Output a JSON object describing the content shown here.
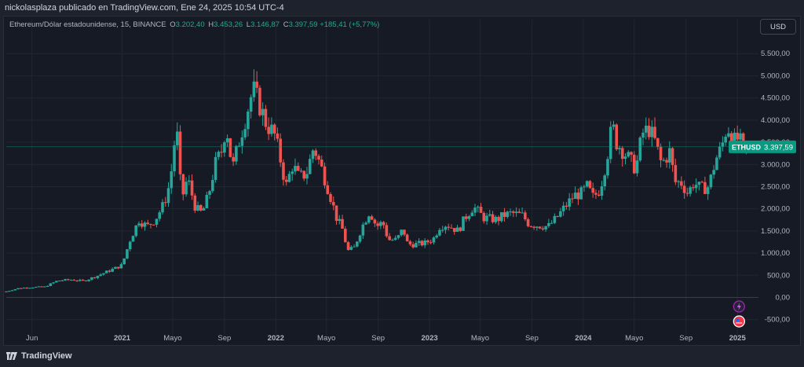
{
  "header": {
    "publisher_line": "nickolasplaza publicado en TradingView.com, Ene 24, 2025 10:54 UTC-4"
  },
  "legend": {
    "symbol": "Ethereum/Dólar estadounidense, 15, BINANCE",
    "open_label": "O",
    "open": "3.202,40",
    "high_label": "H",
    "high": "3.453,26",
    "low_label": "L",
    "low": "3.146,87",
    "close_label": "C",
    "close": "3.397,59",
    "change": "+185,41 (+5,77%)"
  },
  "currency_button": "USD",
  "price_tag": {
    "symbol": "ETHUSD",
    "value": "3.397,59"
  },
  "footer": {
    "brand": "TradingView"
  },
  "icons": {
    "event_bolt": "lightning-icon",
    "event_flag": "us-flag-icon"
  },
  "colors": {
    "up": "#26a69a",
    "down": "#ef5350",
    "accent": "#089981",
    "background": "#161a25"
  },
  "chart_data": {
    "type": "candlestick",
    "y_axis": {
      "ticks": [
        -500,
        0,
        500,
        1000,
        1500,
        2000,
        2500,
        3000,
        3500,
        4000,
        4500,
        5000,
        5500
      ],
      "tick_labels": [
        "-500,00",
        "0,00",
        "500,00",
        "1.000,00",
        "1.500,00",
        "2.000,00",
        "2.500,00",
        "3.000,00",
        "3.500,00",
        "4.000,00",
        "4.500,00",
        "5.000,00",
        "5.500,00"
      ],
      "range": [
        -700,
        6000
      ]
    },
    "x_axis": {
      "range": [
        "2020-04-01",
        "2025-02-20"
      ],
      "ticks": [
        {
          "date": "2020-06-01",
          "label": "Jun",
          "bold": false
        },
        {
          "date": "2021-01-01",
          "label": "2021",
          "bold": true
        },
        {
          "date": "2021-05-01",
          "label": "Mayo",
          "bold": false
        },
        {
          "date": "2021-09-01",
          "label": "Sep",
          "bold": false
        },
        {
          "date": "2022-01-01",
          "label": "2022",
          "bold": true
        },
        {
          "date": "2022-05-01",
          "label": "Mayo",
          "bold": false
        },
        {
          "date": "2022-09-01",
          "label": "Sep",
          "bold": false
        },
        {
          "date": "2023-01-01",
          "label": "2023",
          "bold": true
        },
        {
          "date": "2023-05-01",
          "label": "Mayo",
          "bold": false
        },
        {
          "date": "2023-09-01",
          "label": "Sep",
          "bold": false
        },
        {
          "date": "2024-01-01",
          "label": "2024",
          "bold": true
        },
        {
          "date": "2024-05-01",
          "label": "Mayo",
          "bold": false
        },
        {
          "date": "2024-09-01",
          "label": "Sep",
          "bold": false
        },
        {
          "date": "2025-01-01",
          "label": "2025",
          "bold": true
        }
      ]
    },
    "current_price": 3397.59,
    "weekly_close_path": [
      [
        "2020-04-01",
        135
      ],
      [
        "2020-05-01",
        210
      ],
      [
        "2020-06-01",
        230
      ],
      [
        "2020-07-01",
        240
      ],
      [
        "2020-08-01",
        380
      ],
      [
        "2020-09-01",
        400
      ],
      [
        "2020-10-01",
        370
      ],
      [
        "2020-11-01",
        480
      ],
      [
        "2020-12-01",
        600
      ],
      [
        "2021-01-01",
        730
      ],
      [
        "2021-01-20",
        1300
      ],
      [
        "2021-02-10",
        1750
      ],
      [
        "2021-03-01",
        1600
      ],
      [
        "2021-03-20",
        1750
      ],
      [
        "2021-04-10",
        2100
      ],
      [
        "2021-04-25",
        2600
      ],
      [
        "2021-05-10",
        3900
      ],
      [
        "2021-05-22",
        2200
      ],
      [
        "2021-06-05",
        2700
      ],
      [
        "2021-06-25",
        2000
      ],
      [
        "2021-07-10",
        1900
      ],
      [
        "2021-07-25",
        2300
      ],
      [
        "2021-08-10",
        3000
      ],
      [
        "2021-08-25",
        3300
      ],
      [
        "2021-09-05",
        3900
      ],
      [
        "2021-09-20",
        2900
      ],
      [
        "2021-10-05",
        3500
      ],
      [
        "2021-10-25",
        4200
      ],
      [
        "2021-11-08",
        4700
      ],
      [
        "2021-11-25",
        4300
      ],
      [
        "2021-12-10",
        3900
      ],
      [
        "2021-12-28",
        3700
      ],
      [
        "2022-01-10",
        3200
      ],
      [
        "2022-01-25",
        2500
      ],
      [
        "2022-02-10",
        3000
      ],
      [
        "2022-02-25",
        2700
      ],
      [
        "2022-03-15",
        2800
      ],
      [
        "2022-04-01",
        3400
      ],
      [
        "2022-04-20",
        2900
      ],
      [
        "2022-05-10",
        2300
      ],
      [
        "2022-05-25",
        1800
      ],
      [
        "2022-06-10",
        1500
      ],
      [
        "2022-06-20",
        1050
      ],
      [
        "2022-07-05",
        1100
      ],
      [
        "2022-07-25",
        1600
      ],
      [
        "2022-08-12",
        1950
      ],
      [
        "2022-08-28",
        1600
      ],
      [
        "2022-09-12",
        1700
      ],
      [
        "2022-09-25",
        1300
      ],
      [
        "2022-10-15",
        1300
      ],
      [
        "2022-10-30",
        1550
      ],
      [
        "2022-11-10",
        1200
      ],
      [
        "2022-11-28",
        1200
      ],
      [
        "2022-12-20",
        1220
      ],
      [
        "2023-01-10",
        1320
      ],
      [
        "2023-01-25",
        1600
      ],
      [
        "2023-02-10",
        1650
      ],
      [
        "2023-03-10",
        1500
      ],
      [
        "2023-03-25",
        1780
      ],
      [
        "2023-04-15",
        2050
      ],
      [
        "2023-05-10",
        1800
      ],
      [
        "2023-06-10",
        1750
      ],
      [
        "2023-06-25",
        1850
      ],
      [
        "2023-07-15",
        1900
      ],
      [
        "2023-08-10",
        1850
      ],
      [
        "2023-08-25",
        1650
      ],
      [
        "2023-09-20",
        1620
      ],
      [
        "2023-10-10",
        1600
      ],
      [
        "2023-10-30",
        1800
      ],
      [
        "2023-11-15",
        2000
      ],
      [
        "2023-12-10",
        2300
      ],
      [
        "2023-12-28",
        2350
      ],
      [
        "2024-01-10",
        2500
      ],
      [
        "2024-01-25",
        2250
      ],
      [
        "2024-02-10",
        2450
      ],
      [
        "2024-02-25",
        3100
      ],
      [
        "2024-03-10",
        3900
      ],
      [
        "2024-03-20",
        3500
      ],
      [
        "2024-04-05",
        3300
      ],
      [
        "2024-04-20",
        3100
      ],
      [
        "2024-05-05",
        2900
      ],
      [
        "2024-05-20",
        3700
      ],
      [
        "2024-06-05",
        3800
      ],
      [
        "2024-06-20",
        3500
      ],
      [
        "2024-07-05",
        3000
      ],
      [
        "2024-07-25",
        3300
      ],
      [
        "2024-08-05",
        2600
      ],
      [
        "2024-08-20",
        2600
      ],
      [
        "2024-09-05",
        2350
      ],
      [
        "2024-09-20",
        2600
      ],
      [
        "2024-10-05",
        2450
      ],
      [
        "2024-10-25",
        2500
      ],
      [
        "2024-11-10",
        3100
      ],
      [
        "2024-11-25",
        3400
      ],
      [
        "2024-12-08",
        3900
      ],
      [
        "2024-12-22",
        3500
      ],
      [
        "2025-01-05",
        3600
      ],
      [
        "2025-01-15",
        3250
      ],
      [
        "2025-01-24",
        3397
      ]
    ]
  }
}
